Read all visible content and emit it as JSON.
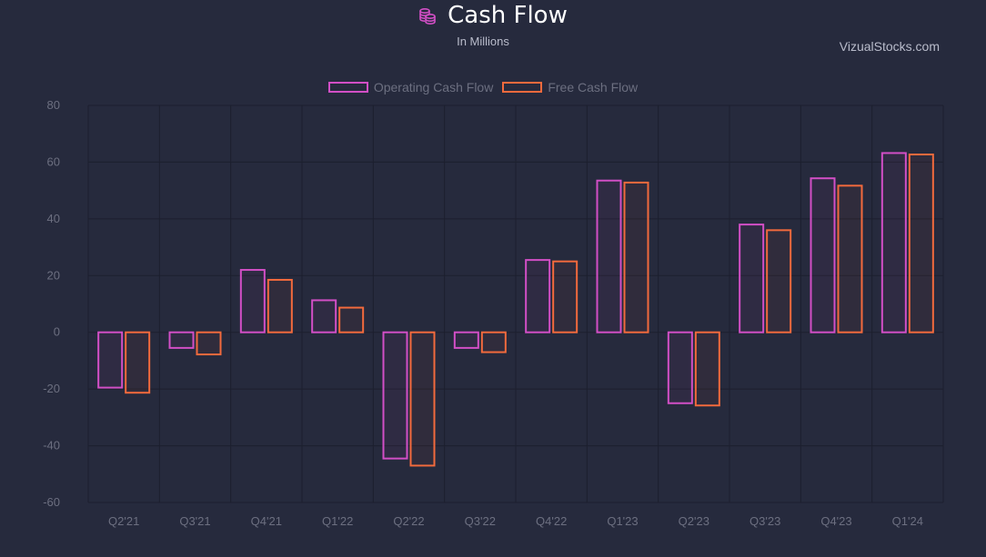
{
  "header": {
    "title": "Cash Flow",
    "subtitle": "In Millions",
    "icon": "coins-stack-icon",
    "watermark": "VizualStocks.com"
  },
  "colors": {
    "background": "#262a3d",
    "grid": "#1c1f2e",
    "operating": "#d24fc6",
    "free": "#f26a3d"
  },
  "chart_data": {
    "type": "bar",
    "title": "Cash Flow",
    "subtitle": "In Millions",
    "categories": [
      "Q2'21",
      "Q3'21",
      "Q4'21",
      "Q1'22",
      "Q2'22",
      "Q3'22",
      "Q4'22",
      "Q1'23",
      "Q2'23",
      "Q3'23",
      "Q4'23",
      "Q1'24"
    ],
    "series": [
      {
        "name": "Operating Cash Flow",
        "color": "#d24fc6",
        "values": [
          -19.5,
          -5.5,
          22,
          11.3,
          -44.5,
          -5.5,
          25.5,
          53.5,
          -25,
          38,
          54.3,
          63.2
        ]
      },
      {
        "name": "Free Cash Flow",
        "color": "#f26a3d",
        "values": [
          -21.3,
          -7.8,
          18.5,
          8.7,
          -47,
          -7,
          25,
          52.8,
          -25.8,
          36,
          51.7,
          62.7
        ]
      }
    ],
    "ylim": [
      -60,
      80
    ],
    "yticks": [
      80,
      60,
      40,
      20,
      0,
      -20,
      -40,
      -60
    ],
    "xlabel": "",
    "ylabel": "",
    "grid": true,
    "legend": "top-center"
  }
}
